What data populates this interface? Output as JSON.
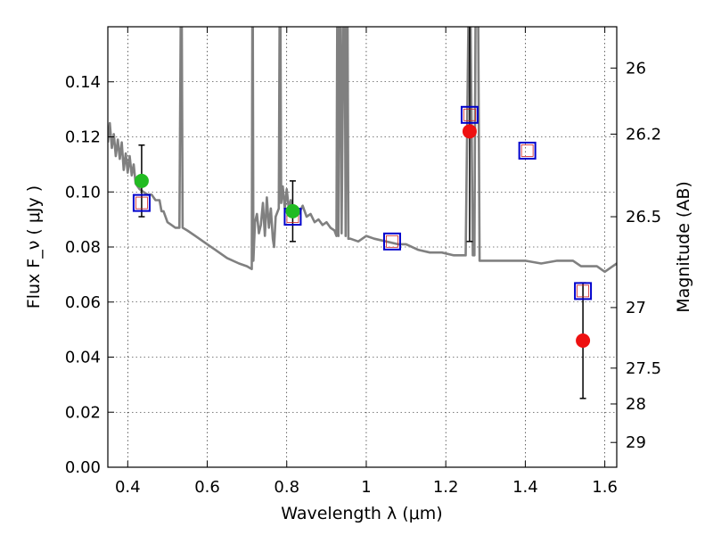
{
  "chart_data": {
    "type": "scatter",
    "xlabel": "Wavelength  λ (μm)",
    "ylabel": "Flux  F_ν  ( μJy )",
    "ylabel_right": "Magnitude (AB)",
    "xlim": [
      0.35,
      1.63
    ],
    "ylim": [
      0.0,
      0.16
    ],
    "x_ticks": [
      0.4,
      0.6,
      0.8,
      1,
      1.2,
      1.4,
      1.6
    ],
    "x_tick_labels": [
      "0.4",
      "0.6",
      "0.8",
      "1",
      "1.2",
      "1.4",
      "1.6"
    ],
    "y_ticks": [
      0.0,
      0.02,
      0.04,
      0.06,
      0.08,
      0.1,
      0.12,
      0.14
    ],
    "y_tick_labels": [
      "0.00",
      "0.02",
      "0.04",
      "0.06",
      "0.08",
      "0.10",
      "0.12",
      "0.14"
    ],
    "right_ticks": [
      {
        "label": "26",
        "flux": 0.145
      },
      {
        "label": "26.2",
        "flux": 0.121
      },
      {
        "label": "26.5",
        "flux": 0.091
      },
      {
        "label": "27",
        "flux": 0.058
      },
      {
        "label": "27.5",
        "flux": 0.036
      },
      {
        "label": "28",
        "flux": 0.023
      },
      {
        "label": "29",
        "flux": 0.009
      }
    ],
    "grid": true,
    "model_spectrum": {
      "color": "#808080",
      "points": [
        [
          0.35,
          0.118
        ],
        [
          0.355,
          0.125
        ],
        [
          0.36,
          0.116
        ],
        [
          0.365,
          0.121
        ],
        [
          0.37,
          0.113
        ],
        [
          0.375,
          0.119
        ],
        [
          0.38,
          0.112
        ],
        [
          0.385,
          0.118
        ],
        [
          0.39,
          0.108
        ],
        [
          0.395,
          0.114
        ],
        [
          0.4,
          0.107
        ],
        [
          0.405,
          0.113
        ],
        [
          0.41,
          0.106
        ],
        [
          0.415,
          0.11
        ],
        [
          0.42,
          0.103
        ],
        [
          0.43,
          0.101
        ],
        [
          0.44,
          0.1
        ],
        [
          0.45,
          0.099
        ],
        [
          0.46,
          0.099
        ],
        [
          0.47,
          0.097
        ],
        [
          0.48,
          0.097
        ],
        [
          0.485,
          0.093
        ],
        [
          0.49,
          0.093
        ],
        [
          0.5,
          0.089
        ],
        [
          0.51,
          0.088
        ],
        [
          0.52,
          0.087
        ],
        [
          0.53,
          0.087
        ],
        [
          0.535,
          0.2
        ],
        [
          0.538,
          0.087
        ],
        [
          0.55,
          0.086
        ],
        [
          0.57,
          0.084
        ],
        [
          0.6,
          0.081
        ],
        [
          0.62,
          0.079
        ],
        [
          0.65,
          0.076
        ],
        [
          0.68,
          0.074
        ],
        [
          0.7,
          0.073
        ],
        [
          0.712,
          0.072
        ],
        [
          0.714,
          0.2
        ],
        [
          0.716,
          0.075
        ],
        [
          0.72,
          0.089
        ],
        [
          0.725,
          0.092
        ],
        [
          0.73,
          0.085
        ],
        [
          0.735,
          0.088
        ],
        [
          0.74,
          0.096
        ],
        [
          0.745,
          0.084
        ],
        [
          0.75,
          0.098
        ],
        [
          0.755,
          0.087
        ],
        [
          0.76,
          0.094
        ],
        [
          0.765,
          0.083
        ],
        [
          0.768,
          0.08
        ],
        [
          0.772,
          0.091
        ],
        [
          0.78,
          0.094
        ],
        [
          0.783,
          0.2
        ],
        [
          0.786,
          0.096
        ],
        [
          0.79,
          0.102
        ],
        [
          0.795,
          0.094
        ],
        [
          0.8,
          0.101
        ],
        [
          0.805,
          0.094
        ],
        [
          0.81,
          0.097
        ],
        [
          0.82,
          0.093
        ],
        [
          0.83,
          0.092
        ],
        [
          0.84,
          0.095
        ],
        [
          0.85,
          0.091
        ],
        [
          0.86,
          0.092
        ],
        [
          0.87,
          0.089
        ],
        [
          0.88,
          0.09
        ],
        [
          0.89,
          0.088
        ],
        [
          0.9,
          0.089
        ],
        [
          0.91,
          0.087
        ],
        [
          0.92,
          0.086
        ],
        [
          0.925,
          0.084
        ],
        [
          0.928,
          0.2
        ],
        [
          0.93,
          0.084
        ],
        [
          0.935,
          0.2
        ],
        [
          0.938,
          0.085
        ],
        [
          0.945,
          0.2
        ],
        [
          0.948,
          0.084
        ],
        [
          0.952,
          0.2
        ],
        [
          0.955,
          0.083
        ],
        [
          0.96,
          0.083
        ],
        [
          0.98,
          0.082
        ],
        [
          1.0,
          0.084
        ],
        [
          1.02,
          0.083
        ],
        [
          1.05,
          0.082
        ],
        [
          1.08,
          0.081
        ],
        [
          1.1,
          0.081
        ],
        [
          1.13,
          0.079
        ],
        [
          1.16,
          0.078
        ],
        [
          1.19,
          0.078
        ],
        [
          1.22,
          0.077
        ],
        [
          1.25,
          0.077
        ],
        [
          1.26,
          0.2
        ],
        [
          1.268,
          0.077
        ],
        [
          1.272,
          0.077
        ],
        [
          1.276,
          0.2
        ],
        [
          1.28,
          0.2
        ],
        [
          1.285,
          0.075
        ],
        [
          1.3,
          0.075
        ],
        [
          1.33,
          0.075
        ],
        [
          1.36,
          0.075
        ],
        [
          1.4,
          0.075
        ],
        [
          1.44,
          0.074
        ],
        [
          1.48,
          0.075
        ],
        [
          1.52,
          0.075
        ],
        [
          1.54,
          0.073
        ],
        [
          1.56,
          0.073
        ],
        [
          1.58,
          0.073
        ],
        [
          1.6,
          0.071
        ],
        [
          1.62,
          0.073
        ],
        [
          1.63,
          0.074
        ]
      ]
    },
    "model_photometry": {
      "marker": "open-square",
      "color": "#0000cc",
      "inner_color": "#cc2222",
      "points": [
        {
          "x": 0.435,
          "y": 0.096
        },
        {
          "x": 0.815,
          "y": 0.091
        },
        {
          "x": 1.065,
          "y": 0.082
        },
        {
          "x": 1.26,
          "y": 0.128
        },
        {
          "x": 1.405,
          "y": 0.115
        },
        {
          "x": 1.545,
          "y": 0.064
        }
      ]
    },
    "observed_optical": {
      "marker": "filled-circle",
      "color": "#22bb22",
      "points": [
        {
          "x": 0.435,
          "y": 0.104,
          "yerr_low": 0.013,
          "yerr_high": 0.013
        },
        {
          "x": 0.815,
          "y": 0.093,
          "yerr_low": 0.011,
          "yerr_high": 0.011
        }
      ]
    },
    "observed_nir": {
      "marker": "filled-circle",
      "color": "#ee1111",
      "points": [
        {
          "x": 1.26,
          "y": 0.122,
          "yerr_low": 0.04,
          "yerr_high": 0.04
        },
        {
          "x": 1.545,
          "y": 0.046,
          "yerr_low": 0.021,
          "yerr_high": 0.021
        }
      ]
    }
  }
}
